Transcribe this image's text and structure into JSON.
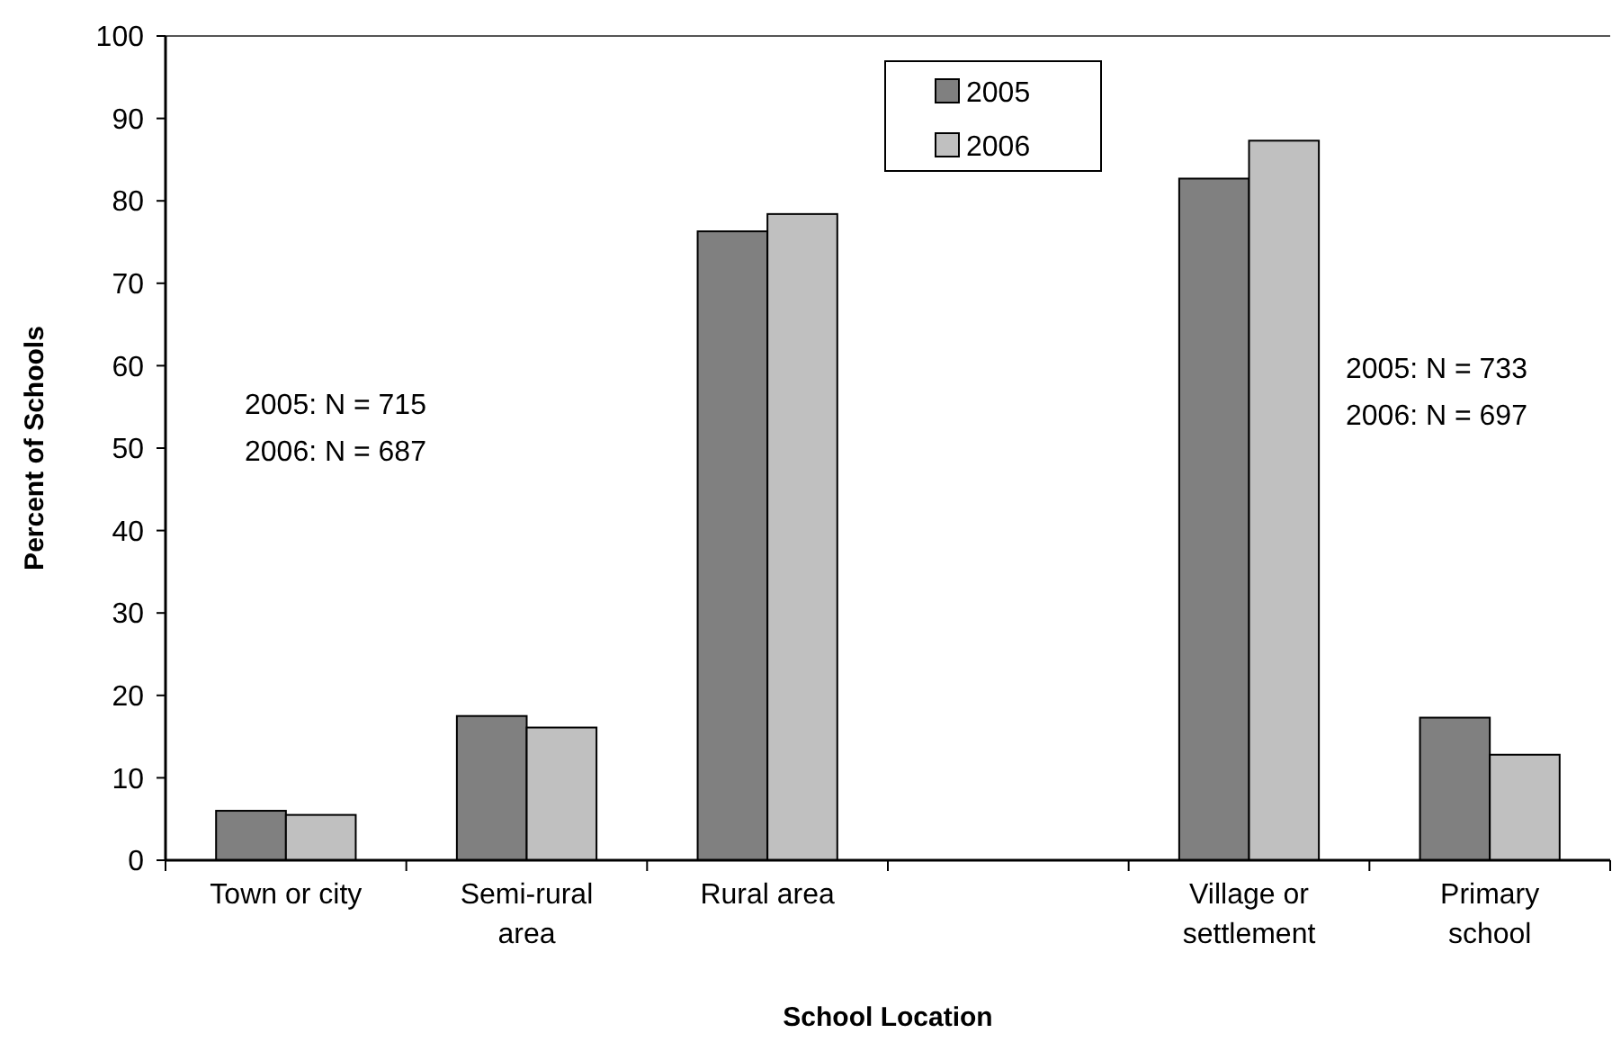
{
  "chart_data": {
    "type": "bar",
    "xlabel": "School Location",
    "ylabel": "Percent of Schools",
    "categories": [
      "Town or city",
      "Semi-rural area",
      "Rural area",
      null,
      "Village or settlement",
      "Primary school"
    ],
    "series": [
      {
        "name": "2005",
        "color": "#808080",
        "values": [
          6.0,
          17.5,
          76.3,
          null,
          82.7,
          17.3
        ]
      },
      {
        "name": "2006",
        "color": "#c0c0c0",
        "values": [
          5.5,
          16.1,
          78.4,
          null,
          87.3,
          12.8
        ]
      }
    ],
    "ylim": [
      0,
      100
    ],
    "yticks": [
      0,
      10,
      20,
      30,
      40,
      50,
      60,
      70,
      80,
      90,
      100
    ],
    "legend": "top",
    "annotations": [
      "2005: N = 715\n2006: N = 687",
      "2005: N = 733\n2006: N = 697"
    ]
  }
}
